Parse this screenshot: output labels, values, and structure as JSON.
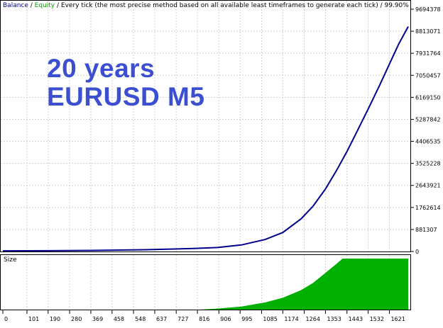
{
  "header": {
    "balance_label": "Balance",
    "sep1": " / ",
    "equity_label": "Equity",
    "description": " / Every tick (the most precise method based on all available least timeframes to generate each tick) / 99.90%"
  },
  "overlay": {
    "line1": "20 years",
    "line2": "EURUSD M5"
  },
  "chart_data": [
    {
      "type": "line",
      "name": "balance-equity",
      "xlim": [
        0,
        1700
      ],
      "ylim": [
        0,
        9694378
      ],
      "y_ticks": [
        "9694378",
        "8813071",
        "7931764",
        "7050457",
        "6169150",
        "5287842",
        "4406535",
        "3525228",
        "2643921",
        "1762614",
        "881307",
        "0"
      ],
      "series": [
        {
          "name": "Balance",
          "color": "#00008b",
          "points": [
            [
              0,
              25000
            ],
            [
              200,
              32000
            ],
            [
              400,
              45000
            ],
            [
              600,
              70000
            ],
            [
              800,
              120000
            ],
            [
              900,
              160000
            ],
            [
              1000,
              260000
            ],
            [
              1100,
              480000
            ],
            [
              1174,
              760000
            ],
            [
              1250,
              1300000
            ],
            [
              1300,
              1800000
            ],
            [
              1353,
              2500000
            ],
            [
              1400,
              3250000
            ],
            [
              1443,
              4000000
            ],
            [
              1480,
              4700000
            ],
            [
              1532,
              5700000
            ],
            [
              1580,
              6650000
            ],
            [
              1621,
              7500000
            ],
            [
              1660,
              8300000
            ],
            [
              1700,
              9000000
            ]
          ]
        }
      ]
    },
    {
      "type": "area",
      "name": "size",
      "title": "Size",
      "xlim": [
        0,
        1700
      ],
      "ylim": [
        0,
        1
      ],
      "x_ticks": [
        "0",
        "101",
        "190",
        "280",
        "369",
        "458",
        "548",
        "637",
        "727",
        "816",
        "906",
        "995",
        "1085",
        "1174",
        "1264",
        "1353",
        "1443",
        "1532",
        "1621"
      ],
      "color": "#00b000",
      "points": [
        [
          830,
          0.0
        ],
        [
          900,
          0.02
        ],
        [
          1000,
          0.06
        ],
        [
          1100,
          0.14
        ],
        [
          1174,
          0.23
        ],
        [
          1250,
          0.38
        ],
        [
          1300,
          0.52
        ],
        [
          1353,
          0.72
        ],
        [
          1400,
          0.9
        ],
        [
          1425,
          1.0
        ],
        [
          1700,
          1.0
        ]
      ]
    }
  ]
}
